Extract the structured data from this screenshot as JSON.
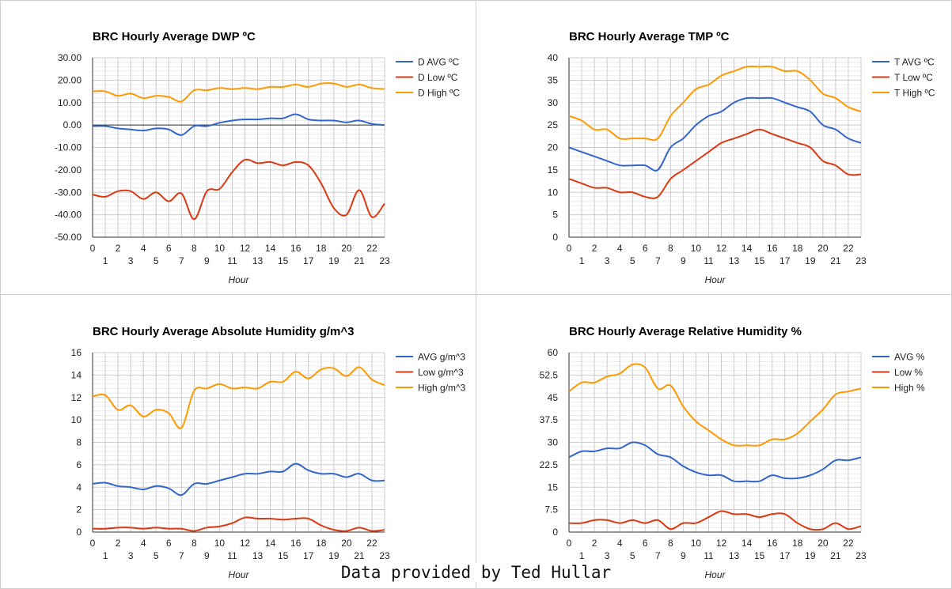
{
  "footer": "Data provided by Ted Hullar",
  "colors": {
    "avg": "#3366cc",
    "low": "#dc3912",
    "high": "#ff9900"
  },
  "chart_data": [
    {
      "type": "line",
      "title": "BRC Hourly Average DWP ºC",
      "xlabel": "Hour",
      "ylabel": "",
      "ylim": [
        -50,
        30
      ],
      "yticks": [
        -50,
        -40,
        -30,
        -20,
        -10,
        0,
        10,
        20,
        30
      ],
      "ytick_labels": [
        "-50.00",
        "-40.00",
        "-30.00",
        "-20.00",
        "-10.00",
        "0.00",
        "10.00",
        "20.00",
        "30.00"
      ],
      "x": [
        0,
        1,
        2,
        3,
        4,
        5,
        6,
        7,
        8,
        9,
        10,
        11,
        12,
        13,
        14,
        15,
        16,
        17,
        18,
        19,
        20,
        21,
        22,
        23
      ],
      "xlim": [
        0,
        23
      ],
      "zero_line": true,
      "legend": "right",
      "series": [
        {
          "name": "D AVG ºC",
          "color": "avg",
          "values": [
            -0.5,
            -0.5,
            -1.5,
            -2,
            -2.5,
            -1.5,
            -2,
            -4.5,
            -0.5,
            -0.5,
            1,
            2,
            2.5,
            2.5,
            3,
            3,
            4.8,
            2.5,
            2,
            2,
            1.2,
            2,
            0.5,
            0
          ]
        },
        {
          "name": "D Low ºC",
          "color": "low",
          "values": [
            -31,
            -32,
            -29.5,
            -29.5,
            -33,
            -30,
            -34,
            -30.5,
            -42,
            -29.5,
            -28.5,
            -21,
            -15.5,
            -17,
            -16.5,
            -18,
            -16.5,
            -18,
            -26,
            -37,
            -40,
            -29,
            -41,
            -35
          ]
        },
        {
          "name": "D High ºC",
          "color": "high",
          "values": [
            15,
            15,
            13,
            14,
            12,
            13,
            12.5,
            10.5,
            15.5,
            15.5,
            16.5,
            16,
            16.5,
            16,
            17,
            17,
            18,
            17,
            18.5,
            18.5,
            17,
            18,
            16.5,
            16
          ]
        }
      ]
    },
    {
      "type": "line",
      "title": "BRC Hourly Average TMP ºC",
      "xlabel": "Hour",
      "ylabel": "",
      "ylim": [
        0,
        40
      ],
      "yticks": [
        0,
        5,
        10,
        15,
        20,
        25,
        30,
        35,
        40
      ],
      "ytick_labels": [
        "0",
        "5",
        "10",
        "15",
        "20",
        "25",
        "30",
        "35",
        "40"
      ],
      "x": [
        0,
        1,
        2,
        3,
        4,
        5,
        6,
        7,
        8,
        9,
        10,
        11,
        12,
        13,
        14,
        15,
        16,
        17,
        18,
        19,
        20,
        21,
        22,
        23
      ],
      "xlim": [
        0,
        23
      ],
      "zero_line": false,
      "legend": "right",
      "series": [
        {
          "name": "T AVG ºC",
          "color": "avg",
          "values": [
            20,
            19,
            18,
            17,
            16,
            16,
            16,
            15,
            20,
            22,
            25,
            27,
            28,
            30,
            31,
            31,
            31,
            30,
            29,
            28,
            25,
            24,
            22,
            21
          ]
        },
        {
          "name": "T Low ºC",
          "color": "low",
          "values": [
            13,
            12,
            11,
            11,
            10,
            10,
            9,
            9,
            13,
            15,
            17,
            19,
            21,
            22,
            23,
            24,
            23,
            22,
            21,
            20,
            17,
            16,
            14,
            14
          ]
        },
        {
          "name": "T High ºC",
          "color": "high",
          "values": [
            27,
            26,
            24,
            24,
            22,
            22,
            22,
            22,
            27,
            30,
            33,
            34,
            36,
            37,
            38,
            38,
            38,
            37,
            37,
            35,
            32,
            31,
            29,
            28
          ]
        }
      ]
    },
    {
      "type": "line",
      "title": "BRC Hourly Average Absolute Humidity g/m^3",
      "xlabel": "Hour",
      "ylabel": "",
      "ylim": [
        0,
        16
      ],
      "yticks": [
        0,
        2,
        4,
        6,
        8,
        10,
        12,
        14,
        16
      ],
      "ytick_labels": [
        "0",
        "2",
        "4",
        "6",
        "8",
        "10",
        "12",
        "14",
        "16"
      ],
      "x": [
        0,
        1,
        2,
        3,
        4,
        5,
        6,
        7,
        8,
        9,
        10,
        11,
        12,
        13,
        14,
        15,
        16,
        17,
        18,
        19,
        20,
        21,
        22,
        23
      ],
      "xlim": [
        0,
        23
      ],
      "zero_line": false,
      "legend": "right",
      "series": [
        {
          "name": "AVG g/m^3",
          "color": "avg",
          "values": [
            4.3,
            4.4,
            4.1,
            4.0,
            3.8,
            4.1,
            3.9,
            3.3,
            4.3,
            4.3,
            4.6,
            4.9,
            5.2,
            5.2,
            5.4,
            5.4,
            6.1,
            5.5,
            5.2,
            5.2,
            4.9,
            5.2,
            4.6,
            4.6
          ]
        },
        {
          "name": "Low g/m^3",
          "color": "low",
          "values": [
            0.3,
            0.3,
            0.4,
            0.4,
            0.3,
            0.4,
            0.3,
            0.3,
            0.1,
            0.4,
            0.5,
            0.8,
            1.3,
            1.2,
            1.2,
            1.1,
            1.2,
            1.2,
            0.6,
            0.2,
            0.1,
            0.4,
            0.1,
            0.2
          ]
        },
        {
          "name": "High g/m^3",
          "color": "high",
          "values": [
            12.1,
            12.2,
            10.9,
            11.3,
            10.3,
            10.9,
            10.6,
            9.3,
            12.6,
            12.8,
            13.2,
            12.8,
            12.9,
            12.8,
            13.4,
            13.4,
            14.3,
            13.7,
            14.5,
            14.6,
            13.9,
            14.7,
            13.6,
            13.1
          ]
        }
      ]
    },
    {
      "type": "line",
      "title": "BRC Hourly Average Relative Humidity %",
      "xlabel": "Hour",
      "ylabel": "",
      "ylim": [
        0,
        60
      ],
      "yticks": [
        0,
        7.5,
        15,
        22.5,
        30,
        37.5,
        45,
        52.5,
        60
      ],
      "ytick_labels": [
        "0",
        "7.5",
        "15",
        "22.5",
        "30",
        "37.5",
        "45",
        "52.5",
        "60"
      ],
      "x": [
        0,
        1,
        2,
        3,
        4,
        5,
        6,
        7,
        8,
        9,
        10,
        11,
        12,
        13,
        14,
        15,
        16,
        17,
        18,
        19,
        20,
        21,
        22,
        23
      ],
      "xlim": [
        0,
        23
      ],
      "zero_line": false,
      "legend": "right",
      "series": [
        {
          "name": "AVG %",
          "color": "avg",
          "values": [
            25,
            27,
            27,
            28,
            28,
            30,
            29,
            26,
            25,
            22,
            20,
            19,
            19,
            17,
            17,
            17,
            19,
            18,
            18,
            19,
            21,
            24,
            24,
            25
          ]
        },
        {
          "name": "Low %",
          "color": "low",
          "values": [
            3,
            3,
            4,
            4,
            3,
            4,
            3,
            4,
            1,
            3,
            3,
            5,
            7,
            6,
            6,
            5,
            6,
            6,
            3,
            1,
            1,
            3,
            1,
            2
          ]
        },
        {
          "name": "High %",
          "color": "high",
          "values": [
            47,
            50,
            50,
            52,
            53,
            56,
            55,
            48,
            49,
            42,
            37,
            34,
            31,
            29,
            29,
            29,
            31,
            31,
            33,
            37,
            41,
            46,
            47,
            48
          ]
        }
      ]
    }
  ]
}
